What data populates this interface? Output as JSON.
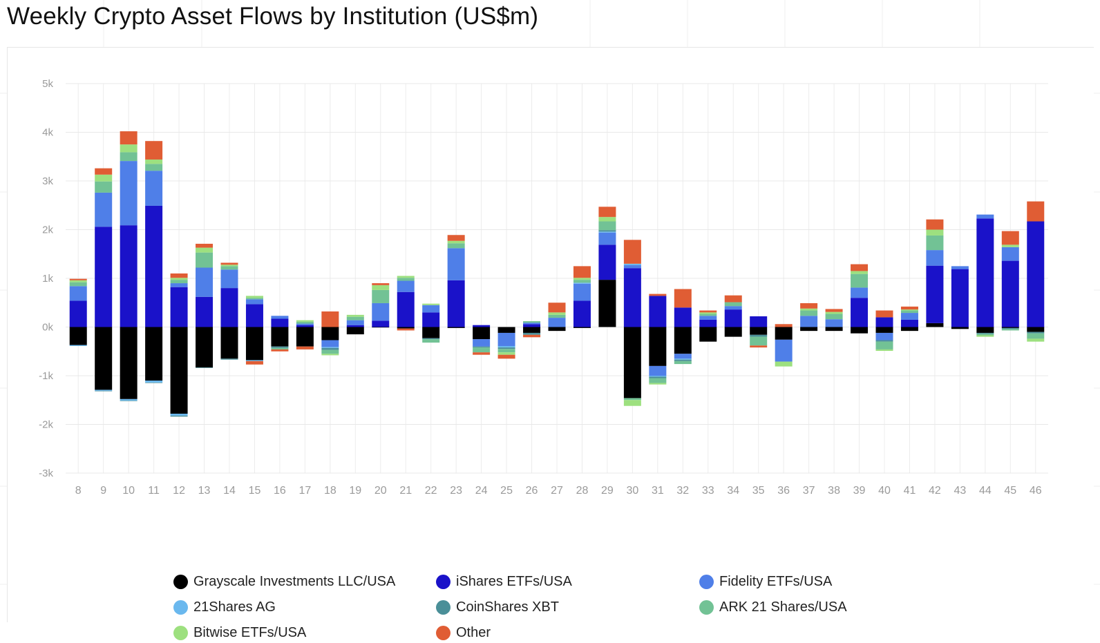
{
  "title": "Weekly Crypto Asset Flows by Institution (US$m)",
  "chart_data": {
    "type": "bar",
    "stacked": true,
    "title": "Weekly Crypto Asset Flows by Institution (US$m)",
    "xlabel": "",
    "ylabel": "",
    "ylim": [
      -3000,
      5000
    ],
    "yticks": [
      -3000,
      -2000,
      -1000,
      0,
      1000,
      2000,
      3000,
      4000,
      5000
    ],
    "ytick_labels": [
      "-3k",
      "-2k",
      "-1k",
      "0k",
      "1k",
      "2k",
      "3k",
      "4k",
      "5k"
    ],
    "grid": true,
    "legend_position": "bottom",
    "categories": [
      "8",
      "9",
      "10",
      "11",
      "12",
      "13",
      "14",
      "15",
      "16",
      "17",
      "18",
      "19",
      "20",
      "21",
      "22",
      "23",
      "24",
      "25",
      "26",
      "27",
      "28",
      "29",
      "30",
      "31",
      "32",
      "33",
      "34",
      "35",
      "36",
      "37",
      "38",
      "39",
      "40",
      "41",
      "42",
      "43",
      "44",
      "45",
      "46"
    ],
    "series": [
      {
        "name": "Grayscale Investments LLC/USA",
        "color": "#000000",
        "values": [
          -370,
          -1290,
          -1480,
          -1100,
          -1780,
          -830,
          -650,
          -680,
          -400,
          -400,
          -270,
          -150,
          -10,
          -30,
          -230,
          -20,
          -250,
          -120,
          -120,
          -80,
          -20,
          970,
          -1460,
          -800,
          -550,
          -300,
          -200,
          -160,
          -260,
          -80,
          -80,
          -130,
          -120,
          -80,
          80,
          -40,
          -120,
          -20,
          -100
        ]
      },
      {
        "name": "iShares ETFs/USA",
        "color": "#1a12c9",
        "values": [
          540,
          2060,
          2090,
          2490,
          820,
          620,
          800,
          470,
          170,
          40,
          0,
          40,
          130,
          720,
          300,
          960,
          40,
          0,
          60,
          0,
          540,
          720,
          1210,
          640,
          400,
          150,
          360,
          220,
          0,
          0,
          0,
          600,
          200,
          150,
          1180,
          1190,
          2230,
          1360,
          2170
        ]
      },
      {
        "name": "Fidelity ETFs/USA",
        "color": "#4f7fe8",
        "values": [
          300,
          700,
          1320,
          720,
          80,
          600,
          380,
          100,
          60,
          30,
          -140,
          100,
          360,
          230,
          150,
          660,
          -150,
          -270,
          30,
          190,
          350,
          250,
          60,
          -200,
          -100,
          80,
          70,
          0,
          -450,
          230,
          160,
          210,
          -150,
          140,
          320,
          60,
          80,
          280,
          0
        ]
      },
      {
        "name": "21Shares AG",
        "color": "#6ab8ee",
        "values": [
          -20,
          -20,
          -30,
          -40,
          -40,
          0,
          0,
          -20,
          0,
          0,
          -20,
          0,
          0,
          0,
          0,
          0,
          0,
          -30,
          0,
          0,
          20,
          20,
          30,
          -20,
          -20,
          0,
          0,
          0,
          0,
          0,
          0,
          0,
          0,
          0,
          0,
          0,
          0,
          0,
          0
        ]
      },
      {
        "name": "CoinShares XBT",
        "color": "#4a8f98",
        "values": [
          0,
          -10,
          -10,
          -10,
          -20,
          -10,
          -20,
          0,
          -30,
          0,
          -40,
          0,
          0,
          0,
          -20,
          0,
          -20,
          -30,
          -40,
          0,
          0,
          30,
          0,
          -30,
          -30,
          0,
          0,
          -40,
          0,
          0,
          0,
          0,
          -30,
          0,
          0,
          0,
          -20,
          -20,
          -30
        ]
      },
      {
        "name": "ARK 21 Shares/USA",
        "color": "#72c295",
        "values": [
          80,
          230,
          180,
          140,
          70,
          310,
          70,
          30,
          -30,
          40,
          -80,
          70,
          270,
          60,
          -70,
          100,
          -100,
          -70,
          30,
          60,
          60,
          180,
          -40,
          -100,
          -60,
          40,
          80,
          -180,
          0,
          110,
          110,
          280,
          -160,
          50,
          300,
          0,
          -30,
          -30,
          -110
        ]
      },
      {
        "name": "Bitwise ETFs/USA",
        "color": "#9de07f",
        "values": [
          40,
          140,
          160,
          90,
          40,
          100,
          30,
          40,
          0,
          30,
          -30,
          40,
          100,
          40,
          30,
          50,
          0,
          -50,
          0,
          50,
          40,
          90,
          -120,
          -30,
          0,
          30,
          0,
          0,
          -100,
          40,
          40,
          60,
          -30,
          20,
          120,
          0,
          -30,
          50,
          -60
        ]
      },
      {
        "name": "Other",
        "color": "#e05d34",
        "values": [
          30,
          130,
          270,
          380,
          90,
          80,
          40,
          -70,
          -40,
          -60,
          320,
          0,
          40,
          -40,
          0,
          120,
          -50,
          -80,
          -50,
          200,
          240,
          210,
          490,
          40,
          380,
          40,
          140,
          -40,
          60,
          110,
          60,
          140,
          140,
          60,
          210,
          0,
          0,
          280,
          410
        ]
      }
    ]
  },
  "legend": {
    "items": [
      {
        "label": "Grayscale Investments LLC/USA",
        "color": "#000000"
      },
      {
        "label": "iShares ETFs/USA",
        "color": "#1a12c9"
      },
      {
        "label": "Fidelity ETFs/USA",
        "color": "#4f7fe8"
      },
      {
        "label": "21Shares AG",
        "color": "#6ab8ee"
      },
      {
        "label": "CoinShares XBT",
        "color": "#4a8f98"
      },
      {
        "label": "ARK 21 Shares/USA",
        "color": "#72c295"
      },
      {
        "label": "Bitwise ETFs/USA",
        "color": "#9de07f"
      },
      {
        "label": "Other",
        "color": "#e05d34"
      }
    ]
  }
}
